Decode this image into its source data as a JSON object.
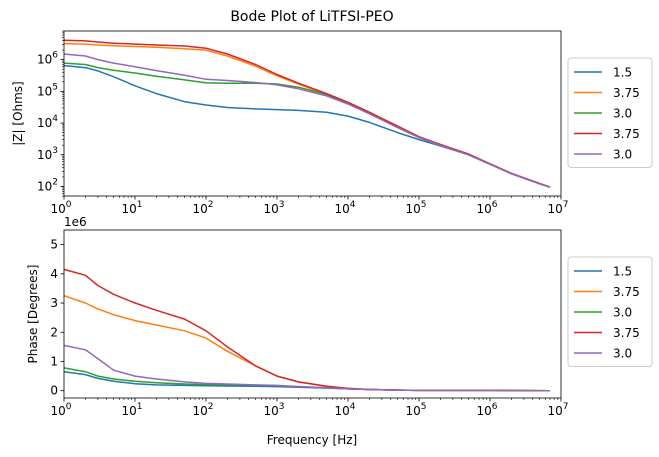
{
  "chart_data": [
    {
      "type": "line",
      "title": "Bode Plot of LiTFSI-PEO",
      "xlabel": "",
      "ylabel": "|Z| [Ohms]",
      "xscale": "log",
      "yscale": "log",
      "xlim": [
        1,
        10000000
      ],
      "ylim": [
        50,
        8000000
      ],
      "x_ticks": [
        {
          "value": 1,
          "base": "10",
          "exp": "0"
        },
        {
          "value": 10,
          "base": "10",
          "exp": "1"
        },
        {
          "value": 100,
          "base": "10",
          "exp": "2"
        },
        {
          "value": 1000,
          "base": "10",
          "exp": "3"
        },
        {
          "value": 10000,
          "base": "10",
          "exp": "4"
        },
        {
          "value": 100000,
          "base": "10",
          "exp": "5"
        },
        {
          "value": 1000000,
          "base": "10",
          "exp": "6"
        },
        {
          "value": 10000000,
          "base": "10",
          "exp": "7"
        }
      ],
      "y_ticks": [
        {
          "value": 100,
          "base": "10",
          "exp": "2"
        },
        {
          "value": 1000,
          "base": "10",
          "exp": "3"
        },
        {
          "value": 10000,
          "base": "10",
          "exp": "4"
        },
        {
          "value": 100000,
          "base": "10",
          "exp": "5"
        },
        {
          "value": 1000000,
          "base": "10",
          "exp": "6"
        }
      ],
      "legend_position": "outside-right",
      "x": [
        1,
        2,
        3,
        5,
        10,
        20,
        50,
        100,
        200,
        500,
        1000,
        2000,
        5000,
        10000,
        20000,
        50000,
        100000,
        200000,
        500000,
        1000000,
        2000000,
        5000000,
        7000000
      ],
      "series": [
        {
          "name": "1.5",
          "color": "#1f77b4",
          "values": [
            650000,
            560000,
            440000,
            290000,
            150000,
            85000,
            47000,
            37000,
            31000,
            28000,
            26500,
            25000,
            22000,
            16500,
            10500,
            5000,
            3000,
            1900,
            1000,
            500,
            250,
            120,
            95
          ]
        },
        {
          "name": "3.75",
          "color": "#ff7f0e",
          "values": [
            3200000,
            3100000,
            2900000,
            2750000,
            2600000,
            2450000,
            2200000,
            2000000,
            1300000,
            620000,
            310000,
            170000,
            80000,
            42000,
            20000,
            7500,
            3600,
            2100,
            1050,
            520,
            260,
            125,
            95
          ]
        },
        {
          "name": "3.0",
          "color": "#2ca02c",
          "values": [
            780000,
            700000,
            560000,
            460000,
            380000,
            300000,
            230000,
            185000,
            180000,
            180000,
            170000,
            135000,
            80000,
            42000,
            20000,
            7300,
            3500,
            2000,
            1000,
            510,
            255,
            122,
            95
          ]
        },
        {
          "name": "3.75",
          "color": "#d62728",
          "values": [
            4100000,
            3900000,
            3600000,
            3300000,
            3100000,
            2900000,
            2700000,
            2300000,
            1500000,
            700000,
            340000,
            180000,
            85000,
            45000,
            22000,
            8000,
            3700,
            2100,
            1050,
            520,
            260,
            125,
            96
          ]
        },
        {
          "name": "3.0",
          "color": "#9467bd",
          "values": [
            1500000,
            1300000,
            1000000,
            780000,
            600000,
            450000,
            320000,
            240000,
            220000,
            190000,
            160000,
            120000,
            72000,
            40000,
            19500,
            7200,
            3500,
            2000,
            1000,
            505,
            255,
            122,
            95
          ]
        }
      ]
    },
    {
      "type": "line",
      "title": "",
      "xlabel": "Frequency [Hz]",
      "ylabel": "Phase [Degrees]",
      "offset_text": "1e6",
      "xscale": "log",
      "yscale": "linear",
      "xlim": [
        1,
        10000000
      ],
      "ylim": [
        -0.25,
        5.5
      ],
      "x_ticks": [
        {
          "value": 1,
          "base": "10",
          "exp": "0"
        },
        {
          "value": 10,
          "base": "10",
          "exp": "1"
        },
        {
          "value": 100,
          "base": "10",
          "exp": "2"
        },
        {
          "value": 1000,
          "base": "10",
          "exp": "3"
        },
        {
          "value": 10000,
          "base": "10",
          "exp": "4"
        },
        {
          "value": 100000,
          "base": "10",
          "exp": "5"
        },
        {
          "value": 1000000,
          "base": "10",
          "exp": "6"
        },
        {
          "value": 10000000,
          "base": "10",
          "exp": "7"
        }
      ],
      "y_ticks": [
        {
          "value": 0,
          "label": "0"
        },
        {
          "value": 1,
          "label": "1"
        },
        {
          "value": 2,
          "label": "2"
        },
        {
          "value": 3,
          "label": "3"
        },
        {
          "value": 4,
          "label": "4"
        },
        {
          "value": 5,
          "label": "5"
        }
      ],
      "legend_position": "outside-right",
      "x": [
        1,
        2,
        3,
        5,
        10,
        20,
        50,
        100,
        200,
        500,
        1000,
        2000,
        5000,
        10000,
        20000,
        50000,
        100000,
        1000000,
        7000000
      ],
      "series": [
        {
          "name": "1.5",
          "color": "#1f77b4",
          "values": [
            0.65,
            0.55,
            0.42,
            0.32,
            0.24,
            0.2,
            0.18,
            0.17,
            0.16,
            0.15,
            0.14,
            0.12,
            0.09,
            0.06,
            0.04,
            0.02,
            0.01,
            0.01,
            0.0
          ]
        },
        {
          "name": "3.75",
          "color": "#ff7f0e",
          "values": [
            3.25,
            3.0,
            2.8,
            2.6,
            2.4,
            2.25,
            2.05,
            1.8,
            1.35,
            0.85,
            0.5,
            0.3,
            0.15,
            0.08,
            0.04,
            0.02,
            0.01,
            0.01,
            0.0
          ]
        },
        {
          "name": "3.0",
          "color": "#2ca02c",
          "values": [
            0.78,
            0.65,
            0.5,
            0.4,
            0.32,
            0.27,
            0.23,
            0.21,
            0.2,
            0.19,
            0.17,
            0.14,
            0.1,
            0.06,
            0.04,
            0.02,
            0.01,
            0.01,
            0.0
          ]
        },
        {
          "name": "3.75",
          "color": "#d62728",
          "values": [
            4.15,
            3.95,
            3.6,
            3.3,
            3.0,
            2.75,
            2.45,
            2.05,
            1.5,
            0.85,
            0.5,
            0.3,
            0.15,
            0.08,
            0.04,
            0.02,
            0.01,
            0.01,
            0.0
          ]
        },
        {
          "name": "3.0",
          "color": "#9467bd",
          "values": [
            1.55,
            1.4,
            1.1,
            0.7,
            0.5,
            0.4,
            0.3,
            0.25,
            0.23,
            0.2,
            0.18,
            0.14,
            0.1,
            0.06,
            0.04,
            0.02,
            0.01,
            0.01,
            0.0
          ]
        }
      ]
    }
  ]
}
